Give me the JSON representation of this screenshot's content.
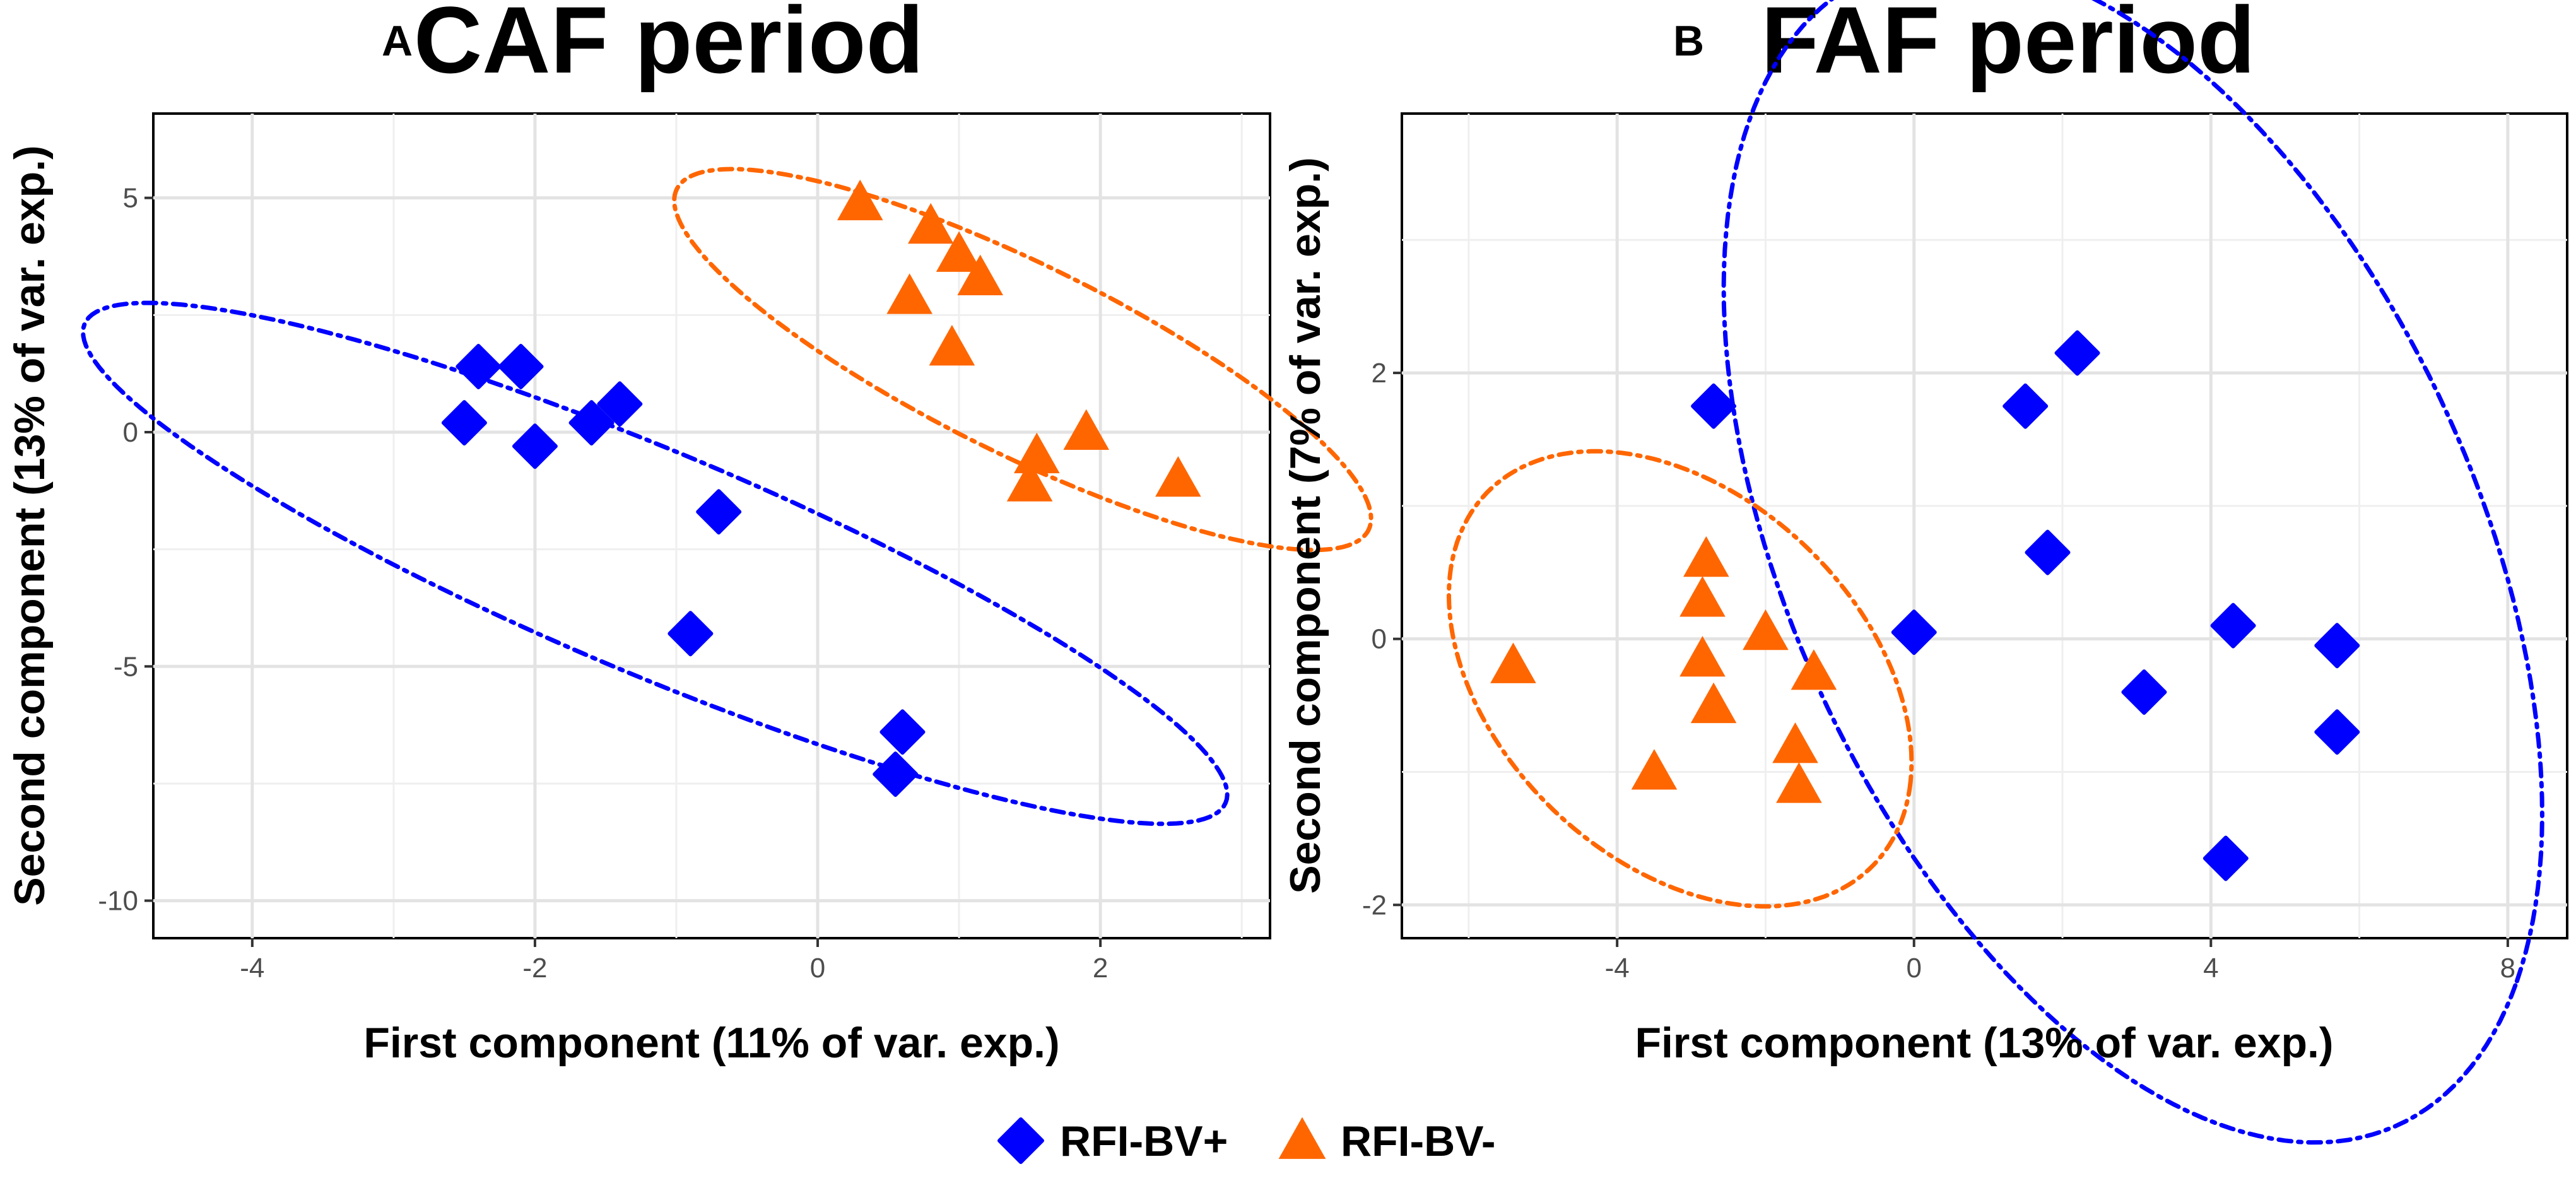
{
  "chart_data": [
    {
      "type": "scatter",
      "panel_label": "A",
      "title": "CAF period",
      "xlabel": "First component (11% of var. exp.)",
      "ylabel": "Second component (13% of var. exp.)",
      "xlim": [
        -4.7,
        3.2
      ],
      "ylim": [
        -10.8,
        6.8
      ],
      "xticks": [
        -4,
        -2,
        0,
        2
      ],
      "yticks": [
        -10,
        -5,
        0,
        5
      ],
      "xminor": [
        -3,
        -1,
        1,
        3
      ],
      "yminor": [
        -7.5,
        -2.5,
        2.5
      ],
      "series": [
        {
          "name": "RFI-BV+",
          "marker": "diamond",
          "color": "#0000ff",
          "points": [
            [
              -2.4,
              1.4
            ],
            [
              -2.1,
              1.4
            ],
            [
              -2.5,
              0.2
            ],
            [
              -2.0,
              -0.3
            ],
            [
              -1.6,
              0.2
            ],
            [
              -1.4,
              0.6
            ],
            [
              -0.7,
              -1.7
            ],
            [
              -0.9,
              -4.3
            ],
            [
              0.6,
              -6.4
            ],
            [
              0.55,
              -7.3
            ]
          ]
        },
        {
          "name": "RFI-BV-",
          "marker": "triangle",
          "color": "#ff6600",
          "points": [
            [
              0.3,
              4.9
            ],
            [
              0.8,
              4.4
            ],
            [
              1.0,
              3.8
            ],
            [
              1.15,
              3.3
            ],
            [
              0.65,
              2.9
            ],
            [
              0.95,
              1.8
            ],
            [
              1.9,
              0.0
            ],
            [
              1.55,
              -0.5
            ],
            [
              1.5,
              -1.1
            ],
            [
              2.55,
              -1.0
            ]
          ]
        }
      ],
      "ellipses": [
        {
          "series": "RFI-BV+",
          "center": [
            -1.15,
            -2.8
          ],
          "angle_deg": -55,
          "semi_major": 6.7,
          "semi_minor": 1.55,
          "color": "#0000ff",
          "style": "dash-dot"
        },
        {
          "series": "RFI-BV-",
          "center": [
            1.45,
            1.55
          ],
          "angle_deg": -61,
          "semi_major": 4.6,
          "semi_minor": 1.2,
          "color": "#ff6600",
          "style": "dash-dot"
        }
      ]
    },
    {
      "type": "scatter",
      "panel_label": "B",
      "title": "FAF period",
      "xlabel": "First component (13% of var. exp.)",
      "ylabel": "Second component (7% of var. exp.)",
      "xlim": [
        -6.9,
        8.8
      ],
      "ylim": [
        -2.25,
        3.95
      ],
      "xticks": [
        -4,
        0,
        4,
        8
      ],
      "yticks": [
        -2,
        0,
        2
      ],
      "xminor": [
        -6,
        -2,
        2,
        6
      ],
      "yminor": [
        -1,
        1,
        3
      ],
      "series": [
        {
          "name": "RFI-BV+",
          "marker": "diamond",
          "color": "#0000ff",
          "points": [
            [
              -2.7,
              1.75
            ],
            [
              2.2,
              2.15
            ],
            [
              1.5,
              1.75
            ],
            [
              1.8,
              0.65
            ],
            [
              0.0,
              0.05
            ],
            [
              3.1,
              -0.4
            ],
            [
              4.3,
              0.1
            ],
            [
              5.7,
              -0.05
            ],
            [
              5.7,
              -0.7
            ],
            [
              4.2,
              -1.65
            ]
          ]
        },
        {
          "name": "RFI-BV-",
          "marker": "triangle",
          "color": "#ff6600",
          "points": [
            [
              -2.8,
              0.6
            ],
            [
              -2.85,
              0.3
            ],
            [
              -2.0,
              0.05
            ],
            [
              -5.4,
              -0.2
            ],
            [
              -2.85,
              -0.15
            ],
            [
              -1.35,
              -0.25
            ],
            [
              -2.7,
              -0.5
            ],
            [
              -1.6,
              -0.8
            ],
            [
              -1.55,
              -1.1
            ],
            [
              -3.5,
              -1.0
            ]
          ]
        }
      ],
      "ellipses": [
        {
          "series": "RFI-BV+",
          "center": [
            2.95,
            0.66
          ],
          "angle_deg": -32,
          "semi_major": 6.1,
          "semi_minor": 3.6,
          "color": "#0000ff",
          "style": "dash-dot"
        },
        {
          "series": "RFI-BV-",
          "center": [
            -3.15,
            -0.3
          ],
          "angle_deg": -15,
          "semi_major": 3.2,
          "semi_minor": 1.55,
          "color": "#ff6600",
          "style": "dash-dot"
        }
      ]
    }
  ],
  "legend": {
    "position": "bottom",
    "items": [
      {
        "label": "RFI-BV+",
        "marker": "diamond",
        "color": "#0000ff"
      },
      {
        "label": "RFI-BV-",
        "marker": "triangle",
        "color": "#ff6600"
      }
    ]
  }
}
